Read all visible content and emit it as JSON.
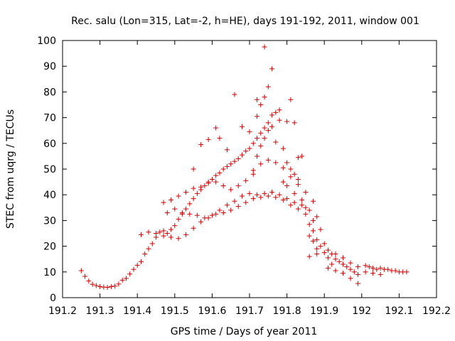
{
  "chart_data": {
    "type": "scatter",
    "title": "Rec. salu (Lon=315, Lat=-2, h=HE), days 191-192, 2011, window 001",
    "xlabel": "GPS time / Days of year 2011",
    "ylabel": "STEC from uqrg / TECUs",
    "xlim": [
      191.2,
      192.2
    ],
    "ylim": [
      0,
      100
    ],
    "x_ticks": [
      191.2,
      191.3,
      191.4,
      191.5,
      191.6,
      191.7,
      191.8,
      191.9,
      192,
      192.1,
      192.2
    ],
    "x_tick_labels": [
      "191.2",
      "191.3",
      "191.4",
      "191.5",
      "191.6",
      "191.7",
      "191.8",
      "191.9",
      "192",
      "192.1",
      "192.2"
    ],
    "y_ticks": [
      0,
      10,
      20,
      30,
      40,
      50,
      60,
      70,
      80,
      90,
      100
    ],
    "y_tick_labels": [
      "0",
      "10",
      "20",
      "30",
      "40",
      "50",
      "60",
      "70",
      "80",
      "90",
      "100"
    ],
    "marker": "+",
    "marker_color": "#d00000",
    "grid": false,
    "legend": "none",
    "series": [
      {
        "points": [
          [
            191.25,
            10.5
          ],
          [
            191.26,
            8.3
          ],
          [
            191.27,
            6.5
          ],
          [
            191.28,
            5.2
          ],
          [
            191.29,
            4.7
          ],
          [
            191.3,
            4.3
          ],
          [
            191.31,
            4.1
          ],
          [
            191.32,
            4.0
          ],
          [
            191.33,
            4.3
          ],
          [
            191.34,
            4.5
          ],
          [
            191.35,
            5.3
          ],
          [
            191.36,
            6.8
          ],
          [
            191.37,
            7.5
          ],
          [
            191.38,
            9.2
          ],
          [
            191.39,
            11.0
          ],
          [
            191.4,
            12.6
          ],
          [
            191.41,
            14.0
          ],
          [
            191.42,
            17.0
          ],
          [
            191.43,
            19.0
          ],
          [
            191.44,
            21.0
          ],
          [
            191.45,
            23.5
          ],
          [
            191.46,
            25.5
          ],
          [
            191.47,
            26.0
          ],
          [
            191.48,
            25.0
          ],
          [
            191.49,
            26.5
          ],
          [
            191.5,
            28.0
          ],
          [
            191.51,
            30.5
          ],
          [
            191.52,
            32.5
          ],
          [
            191.53,
            34.5
          ],
          [
            191.54,
            36.5
          ],
          [
            191.55,
            38.5
          ],
          [
            191.56,
            40.5
          ],
          [
            191.57,
            42.0
          ],
          [
            191.58,
            43.5
          ],
          [
            191.59,
            45.0
          ],
          [
            191.6,
            46.0
          ],
          [
            191.61,
            47.5
          ],
          [
            191.62,
            48.5
          ],
          [
            191.63,
            50.0
          ],
          [
            191.64,
            51.0
          ],
          [
            191.65,
            52.0
          ],
          [
            191.66,
            53.0
          ],
          [
            191.67,
            54.0
          ],
          [
            191.68,
            55.5
          ],
          [
            191.69,
            57.0
          ],
          [
            191.7,
            58.0
          ],
          [
            191.71,
            60.0
          ],
          [
            191.72,
            62.0
          ],
          [
            191.73,
            64.0
          ],
          [
            191.74,
            66.0
          ],
          [
            191.75,
            68.0
          ],
          [
            191.76,
            71.0
          ],
          [
            191.77,
            72.0
          ],
          [
            191.78,
            73.0
          ],
          [
            191.71,
            48.0
          ],
          [
            191.72,
            55.0
          ],
          [
            191.73,
            59.0
          ],
          [
            191.74,
            62.0
          ],
          [
            191.76,
            66.5
          ],
          [
            191.78,
            69.0
          ],
          [
            191.73,
            75.0
          ],
          [
            191.74,
            78.0
          ],
          [
            191.75,
            82.0
          ],
          [
            191.76,
            89.0
          ],
          [
            191.74,
            97.5
          ],
          [
            191.72,
            77.0
          ],
          [
            191.77,
            60.5
          ],
          [
            191.79,
            58.0
          ],
          [
            191.8,
            52.5
          ],
          [
            191.81,
            50.0
          ],
          [
            191.82,
            48.0
          ],
          [
            191.83,
            46.0
          ],
          [
            191.81,
            77.0
          ],
          [
            191.82,
            68.0
          ],
          [
            191.8,
            68.5
          ],
          [
            191.84,
            55.0
          ],
          [
            191.83,
            54.5
          ],
          [
            191.41,
            24.5
          ],
          [
            191.43,
            25.5
          ],
          [
            191.45,
            25.0
          ],
          [
            191.47,
            24.0
          ],
          [
            191.49,
            23.5
          ],
          [
            191.51,
            23.0
          ],
          [
            191.53,
            24.5
          ],
          [
            191.55,
            27.0
          ],
          [
            191.57,
            29.5
          ],
          [
            191.59,
            31.0
          ],
          [
            191.61,
            32.5
          ],
          [
            191.63,
            33.0
          ],
          [
            191.65,
            34.0
          ],
          [
            191.67,
            35.5
          ],
          [
            191.69,
            37.0
          ],
          [
            191.71,
            38.5
          ],
          [
            191.73,
            39.0
          ],
          [
            191.75,
            39.5
          ],
          [
            191.77,
            39.0
          ],
          [
            191.79,
            38.0
          ],
          [
            191.81,
            36.0
          ],
          [
            191.83,
            34.5
          ],
          [
            191.85,
            32.5
          ],
          [
            191.87,
            30.0
          ],
          [
            191.48,
            33.0
          ],
          [
            191.5,
            34.5
          ],
          [
            191.52,
            33.0
          ],
          [
            191.54,
            32.5
          ],
          [
            191.56,
            32.0
          ],
          [
            191.58,
            31.0
          ],
          [
            191.6,
            32.0
          ],
          [
            191.62,
            34.0
          ],
          [
            191.64,
            36.0
          ],
          [
            191.66,
            37.5
          ],
          [
            191.68,
            39.5
          ],
          [
            191.7,
            40.5
          ],
          [
            191.72,
            40.0
          ],
          [
            191.74,
            40.5
          ],
          [
            191.76,
            41.0
          ],
          [
            191.78,
            40.0
          ],
          [
            191.8,
            38.5
          ],
          [
            191.82,
            37.0
          ],
          [
            191.84,
            36.0
          ],
          [
            191.86,
            34.0
          ],
          [
            191.88,
            31.5
          ],
          [
            191.47,
            37.0
          ],
          [
            191.49,
            38.0
          ],
          [
            191.51,
            39.5
          ],
          [
            191.53,
            41.0
          ],
          [
            191.55,
            42.5
          ],
          [
            191.57,
            43.0
          ],
          [
            191.59,
            44.5
          ],
          [
            191.61,
            45.0
          ],
          [
            191.63,
            43.5
          ],
          [
            191.65,
            42.0
          ],
          [
            191.67,
            43.5
          ],
          [
            191.69,
            45.5
          ],
          [
            191.71,
            49.5
          ],
          [
            191.73,
            52.0
          ],
          [
            191.75,
            53.5
          ],
          [
            191.77,
            52.5
          ],
          [
            191.79,
            50.5
          ],
          [
            191.81,
            47.0
          ],
          [
            191.83,
            44.0
          ],
          [
            191.85,
            41.0
          ],
          [
            191.87,
            37.5
          ],
          [
            191.55,
            50.0
          ],
          [
            191.57,
            59.5
          ],
          [
            191.59,
            61.5
          ],
          [
            191.61,
            66.0
          ],
          [
            191.62,
            62.0
          ],
          [
            191.64,
            57.5
          ],
          [
            191.66,
            79.0
          ],
          [
            191.68,
            66.5
          ],
          [
            191.7,
            64.5
          ],
          [
            191.72,
            70.5
          ],
          [
            191.75,
            65.0
          ],
          [
            191.79,
            45.0
          ],
          [
            191.8,
            43.5
          ],
          [
            191.82,
            40.5
          ],
          [
            191.84,
            38.0
          ],
          [
            191.85,
            35.0
          ],
          [
            191.86,
            28.5
          ],
          [
            191.87,
            26.0
          ],
          [
            191.88,
            22.5
          ],
          [
            191.89,
            20.0
          ],
          [
            191.9,
            17.5
          ],
          [
            191.91,
            15.5
          ],
          [
            191.92,
            13.0
          ],
          [
            191.86,
            24.0
          ],
          [
            191.87,
            22.0
          ],
          [
            191.88,
            19.0
          ],
          [
            191.89,
            26.5
          ],
          [
            191.9,
            21.0
          ],
          [
            191.91,
            18.5
          ],
          [
            191.92,
            17.0
          ],
          [
            191.93,
            15.0
          ],
          [
            191.94,
            14.0
          ],
          [
            191.95,
            13.0
          ],
          [
            191.96,
            12.0
          ],
          [
            191.97,
            11.0
          ],
          [
            191.98,
            10.0
          ],
          [
            191.99,
            9.0
          ],
          [
            191.91,
            11.5
          ],
          [
            191.93,
            10.5
          ],
          [
            191.95,
            9.5
          ],
          [
            191.97,
            7.5
          ],
          [
            191.99,
            5.5
          ],
          [
            191.93,
            17.0
          ],
          [
            191.95,
            15.5
          ],
          [
            191.97,
            13.5
          ],
          [
            191.99,
            12.0
          ],
          [
            192.01,
            12.5
          ],
          [
            192.02,
            12.0
          ],
          [
            192.03,
            11.5
          ],
          [
            192.04,
            11.0
          ],
          [
            192.05,
            11.5
          ],
          [
            192.06,
            11.0
          ],
          [
            192.07,
            11.0
          ],
          [
            192.08,
            10.5
          ],
          [
            192.09,
            10.5
          ],
          [
            192.1,
            10.0
          ],
          [
            192.11,
            10.0
          ],
          [
            192.12,
            10.0
          ],
          [
            192.01,
            10.0
          ],
          [
            192.03,
            9.5
          ],
          [
            192.05,
            9.0
          ],
          [
            191.86,
            16.0
          ],
          [
            191.88,
            17.0
          ]
        ]
      }
    ]
  }
}
